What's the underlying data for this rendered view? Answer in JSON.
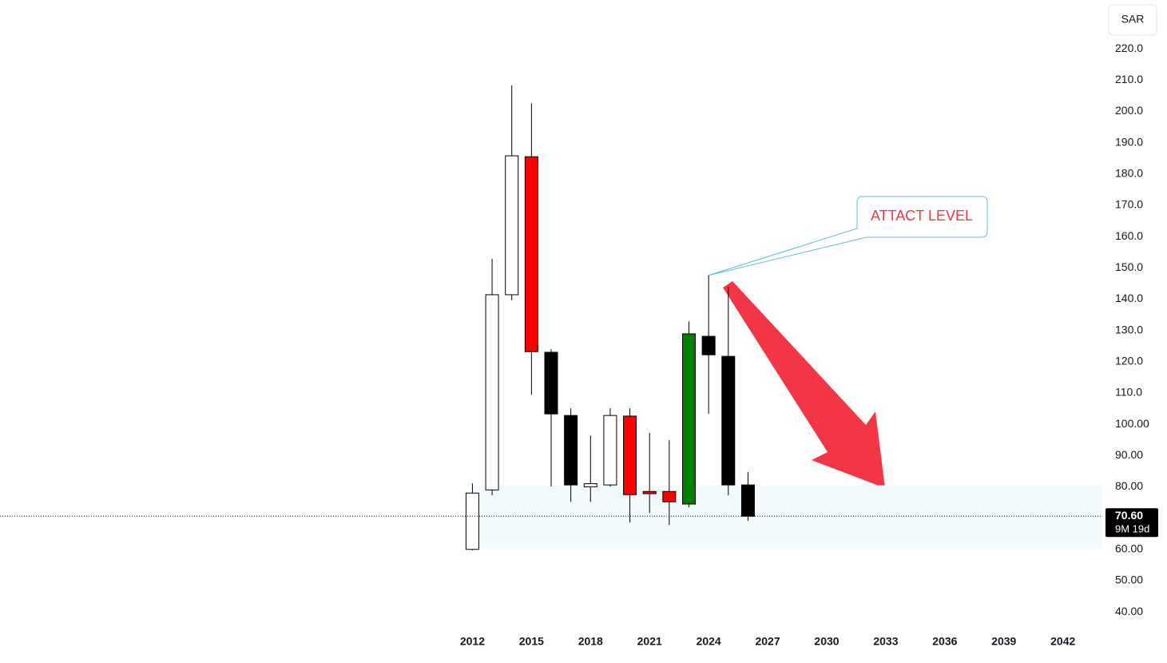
{
  "chart_data": {
    "type": "candlestick",
    "currency": "SAR",
    "x": [
      2012,
      2013,
      2014,
      2015,
      2016,
      2017,
      2018,
      2019,
      2020,
      2021,
      2022,
      2023,
      2024,
      2025,
      2026
    ],
    "open": [
      60,
      79,
      141.4,
      185.5,
      123,
      102.8,
      80,
      80.6,
      102.6,
      78.5,
      78.5,
      74.5,
      128.1,
      121.7,
      80.6
    ],
    "high": [
      81.1,
      152.9,
      208.3,
      202.6,
      124,
      105.1,
      96.4,
      105.1,
      105.1,
      97.2,
      94.9,
      132.9,
      147.5,
      143.9,
      84.7
    ],
    "low": [
      59.7,
      77.3,
      139.6,
      109.4,
      80.1,
      75.2,
      75.2,
      80,
      68.6,
      71.7,
      67.8,
      73.4,
      103.3,
      77.3,
      69.1
    ],
    "close": [
      78,
      141.4,
      185.8,
      123.2,
      103.3,
      80.6,
      81,
      102.8,
      77.5,
      77.8,
      75.2,
      128.9,
      122.2,
      80.6,
      70.6
    ],
    "colors": [
      "#ffffff",
      "#ffffff",
      "#ffffff",
      "#ff0000",
      "#000000",
      "#000000",
      "#ffffff",
      "#ffffff",
      "#ff0000",
      "#ff0000",
      "#ff0000",
      "#008000",
      "#000000",
      "#000000",
      "#000000"
    ],
    "xlim": [
      1988,
      2044
    ],
    "xticks": [
      2012,
      2015,
      2018,
      2021,
      2024,
      2027,
      2030,
      2033,
      2036,
      2039,
      2042
    ],
    "ylim": [
      33.9,
      235.6
    ],
    "yticks": [
      {
        "value": 40,
        "label": "40.00"
      },
      {
        "value": 50,
        "label": "50.00"
      },
      {
        "value": 60,
        "label": "60.00"
      },
      {
        "value": 80,
        "label": "80.00"
      },
      {
        "value": 90,
        "label": "90.00"
      },
      {
        "value": 100,
        "label": "100.00"
      },
      {
        "value": 110,
        "label": "110.0"
      },
      {
        "value": 120,
        "label": "120.0"
      },
      {
        "value": 130,
        "label": "130.0"
      },
      {
        "value": 140,
        "label": "140.0"
      },
      {
        "value": 150,
        "label": "150.0"
      },
      {
        "value": 160,
        "label": "160.0"
      },
      {
        "value": 170,
        "label": "170.0"
      },
      {
        "value": 180,
        "label": "180.0"
      },
      {
        "value": 190,
        "label": "190.0"
      },
      {
        "value": 200,
        "label": "200.0"
      },
      {
        "value": 210,
        "label": "210.0"
      },
      {
        "value": 220,
        "label": "220.0"
      }
    ],
    "zone": [
      60,
      80.5
    ],
    "last_price": {
      "value": 70.6,
      "label": "70.60"
    },
    "countdown": "9M 19d",
    "annotation": "ATTACT LEVEL"
  }
}
